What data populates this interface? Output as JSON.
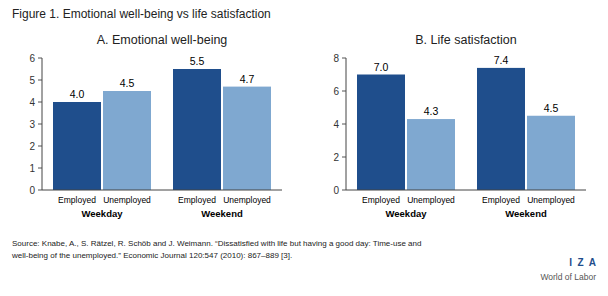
{
  "title": "Figure 1. Emotional well-being vs life satisfaction",
  "annotations": [
    "Source: Knabe, A., S. Rätzel, R. Schöb and J. Weimann. “Dissatisfied with life but having a good day: Time-use and",
    "well-being of the unemployed.” Economic Journal 120:547 (2010): 867–889 [3].",
    "I  Z  A",
    "World of Labor"
  ],
  "chart_data": [
    {
      "type": "bar",
      "title": "A. Emotional well-being",
      "categories": [
        "Weekday",
        "Weekend"
      ],
      "series": [
        {
          "name": "Employed",
          "color": "#1f4e8c",
          "values": [
            4.0,
            5.5
          ],
          "value_labels": [
            "4.0",
            "5.5"
          ]
        },
        {
          "name": "Unemployed",
          "color": "#7fa8d0",
          "values": [
            4.5,
            4.7
          ],
          "value_labels": [
            "4.5",
            "4.7"
          ]
        }
      ],
      "ylim": [
        0,
        6
      ],
      "yticks": [
        0,
        1,
        2,
        3,
        4,
        5,
        6
      ],
      "grid": false,
      "data_labels": true
    },
    {
      "type": "bar",
      "title": "B. Life satisfaction",
      "categories": [
        "Weekday",
        "Weekend"
      ],
      "series": [
        {
          "name": "Employed",
          "color": "#1f4e8c",
          "values": [
            7.0,
            7.4
          ],
          "value_labels": [
            "7.0",
            "7.4"
          ]
        },
        {
          "name": "Unemployed",
          "color": "#7fa8d0",
          "values": [
            4.3,
            4.5
          ],
          "value_labels": [
            "4.3",
            "4.5"
          ]
        }
      ],
      "ylim": [
        0,
        8
      ],
      "yticks": [
        0,
        2,
        4,
        6,
        8
      ],
      "grid": false,
      "data_labels": true
    }
  ]
}
